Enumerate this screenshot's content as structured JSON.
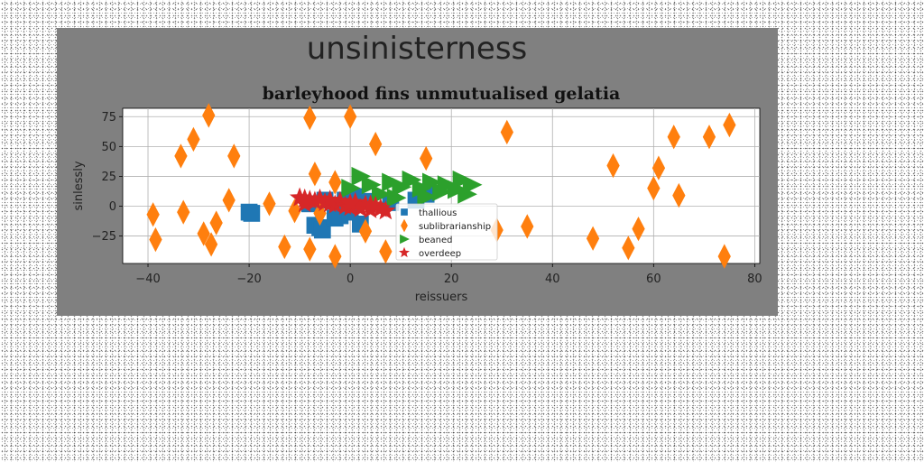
{
  "figure": {
    "suptitle": "unsinisterness",
    "panel_color": "#808080",
    "plot_bg": "#ffffff"
  },
  "chart_data": {
    "type": "scatter",
    "title": "barleyhood fins unmutualised gelatia",
    "xlabel": "reissuers",
    "ylabel": "sinlessly",
    "xlim": [
      -45,
      81
    ],
    "ylim": [
      -48,
      82
    ],
    "xticks": [
      -40,
      -20,
      0,
      20,
      40,
      60,
      80
    ],
    "yticks": [
      -25,
      0,
      25,
      50,
      75
    ],
    "grid": true,
    "legend_position": "center (below data)",
    "series": [
      {
        "name": "thallious",
        "marker": "square",
        "color": "#1f77b4",
        "points": [
          [
            -20,
            -5
          ],
          [
            -19.5,
            -6
          ],
          [
            -7,
            -16
          ],
          [
            -6,
            -18
          ],
          [
            -5.5,
            -20
          ],
          [
            -3,
            -10
          ],
          [
            -2,
            -8
          ],
          [
            0,
            -5
          ],
          [
            1,
            8
          ],
          [
            2,
            -15
          ],
          [
            8,
            3
          ],
          [
            13,
            5
          ],
          [
            14,
            12
          ],
          [
            15,
            10
          ],
          [
            -8,
            2
          ],
          [
            -5,
            5
          ],
          [
            -1,
            5
          ],
          [
            3,
            4
          ]
        ]
      },
      {
        "name": "sublibrarianship",
        "marker": "thin_diamond",
        "color": "#ff7f0e",
        "points": [
          [
            -39,
            -7
          ],
          [
            -38.5,
            -28
          ],
          [
            -33.5,
            42
          ],
          [
            -33,
            -5
          ],
          [
            -31,
            56
          ],
          [
            -29,
            -23
          ],
          [
            -28,
            76
          ],
          [
            -27.5,
            -32
          ],
          [
            -26.5,
            -14
          ],
          [
            -24,
            5
          ],
          [
            -23,
            42
          ],
          [
            -16,
            2
          ],
          [
            -13,
            -34
          ],
          [
            -11,
            -4
          ],
          [
            -8,
            74
          ],
          [
            -8,
            -36
          ],
          [
            -7,
            27
          ],
          [
            -6,
            -6
          ],
          [
            -3,
            20
          ],
          [
            -3,
            -42
          ],
          [
            0,
            75
          ],
          [
            3,
            -21
          ],
          [
            5,
            52
          ],
          [
            7,
            -38
          ],
          [
            15,
            40
          ],
          [
            29,
            -20
          ],
          [
            31,
            62
          ],
          [
            35,
            -17
          ],
          [
            48,
            -27
          ],
          [
            52,
            34
          ],
          [
            55,
            -35
          ],
          [
            57,
            -19
          ],
          [
            60,
            15
          ],
          [
            61,
            32
          ],
          [
            64,
            58
          ],
          [
            65,
            9
          ],
          [
            71,
            58
          ],
          [
            74,
            -42
          ],
          [
            75,
            68
          ]
        ]
      },
      {
        "name": "beaned",
        "marker": "triangle_right",
        "color": "#2ca02c",
        "points": [
          [
            0,
            15
          ],
          [
            2,
            25
          ],
          [
            4,
            18
          ],
          [
            6,
            10
          ],
          [
            8,
            20
          ],
          [
            9,
            7
          ],
          [
            10,
            16
          ],
          [
            12,
            22
          ],
          [
            14,
            15
          ],
          [
            15,
            8
          ],
          [
            16,
            20
          ],
          [
            18,
            12
          ],
          [
            19,
            18
          ],
          [
            21,
            14
          ],
          [
            22,
            22
          ],
          [
            23,
            10
          ],
          [
            24,
            18
          ]
        ]
      },
      {
        "name": "overdeep",
        "marker": "star",
        "color": "#d62728",
        "points": [
          [
            -10,
            7
          ],
          [
            -9,
            6
          ],
          [
            -8,
            5
          ],
          [
            -7,
            4
          ],
          [
            -6,
            6
          ],
          [
            -5,
            3
          ],
          [
            -4,
            2
          ],
          [
            -3,
            1
          ],
          [
            -2,
            4
          ],
          [
            -1,
            0
          ],
          [
            0,
            -1
          ],
          [
            1,
            3
          ],
          [
            2,
            -2
          ],
          [
            3,
            1
          ],
          [
            4,
            -3
          ],
          [
            5,
            0
          ],
          [
            6,
            -2
          ],
          [
            7,
            -4
          ],
          [
            -9,
            2
          ],
          [
            -4,
            5
          ],
          [
            0,
            2
          ],
          [
            4,
            1
          ]
        ]
      }
    ]
  }
}
